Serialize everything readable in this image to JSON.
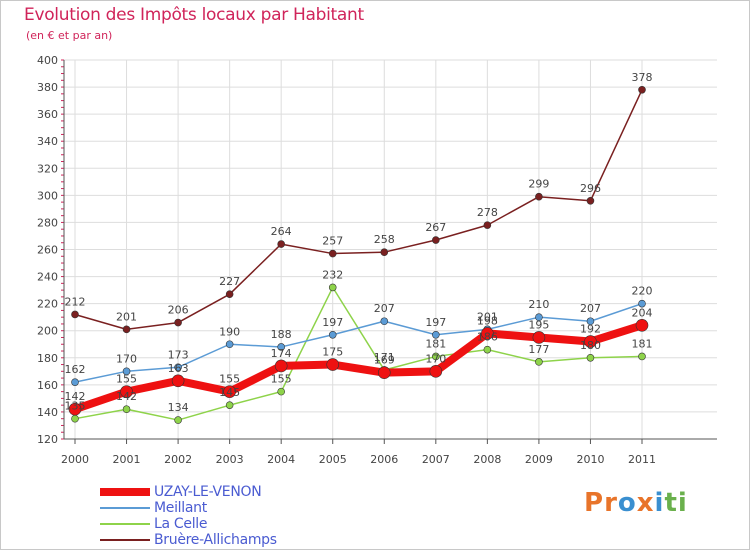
{
  "header": {
    "title": "Evolution des Impôts locaux par Habitant",
    "subtitle": "(en € et par an)"
  },
  "logo": {
    "letters": [
      "P",
      "r",
      "o",
      "x",
      "i",
      "t",
      "i"
    ],
    "colors": [
      "#e8742a",
      "#e8742a",
      "#3a8fd0",
      "#e8742a",
      "#3a8fd0",
      "#6ab04c",
      "#6ab04c"
    ]
  },
  "chart_data": {
    "type": "line",
    "x": [
      "2000",
      "2001",
      "2002",
      "2003",
      "2004",
      "2005",
      "2006",
      "2007",
      "2008",
      "2009",
      "2010",
      "2011"
    ],
    "ylim": [
      120,
      400
    ],
    "yticks": [
      120,
      140,
      160,
      180,
      200,
      220,
      240,
      260,
      280,
      300,
      320,
      340,
      360,
      380,
      400
    ],
    "grid": true,
    "legend_position": "bottom-left",
    "series": [
      {
        "name": "UZAY-LE-VENON",
        "color": "#ee1111",
        "values": [
          142,
          155,
          163,
          155,
          174,
          175,
          169,
          170,
          198,
          195,
          192,
          204
        ],
        "labels": [
          "142",
          "155",
          "163",
          "155",
          "174",
          "175",
          "169",
          "170",
          "198",
          "195",
          "192",
          "204"
        ]
      },
      {
        "name": "Meillant",
        "color": "#5b9bd5",
        "values": [
          162,
          170,
          173,
          190,
          188,
          197,
          207,
          197,
          201,
          210,
          207,
          220
        ],
        "labels": [
          "162",
          "170",
          "173",
          "190",
          "188",
          "197",
          "207",
          "197",
          "201",
          "210",
          "207",
          "220"
        ]
      },
      {
        "name": "La Celle",
        "color": "#8ed34a",
        "values": [
          135,
          142,
          134,
          145,
          155,
          232,
          171,
          181,
          186,
          177,
          180,
          181
        ],
        "labels": [
          "135",
          "142",
          "134",
          "145",
          "155",
          "232",
          "171",
          "181",
          "186",
          "177",
          "180",
          "181"
        ]
      },
      {
        "name": "Bruère-Allichamps",
        "color": "#7a2020",
        "values": [
          212,
          201,
          206,
          227,
          264,
          257,
          258,
          267,
          278,
          299,
          296,
          378
        ],
        "labels": [
          "212",
          "201",
          "206",
          "227",
          "264",
          "257",
          "258",
          "267",
          "278",
          "299",
          "296",
          "378"
        ]
      }
    ]
  }
}
